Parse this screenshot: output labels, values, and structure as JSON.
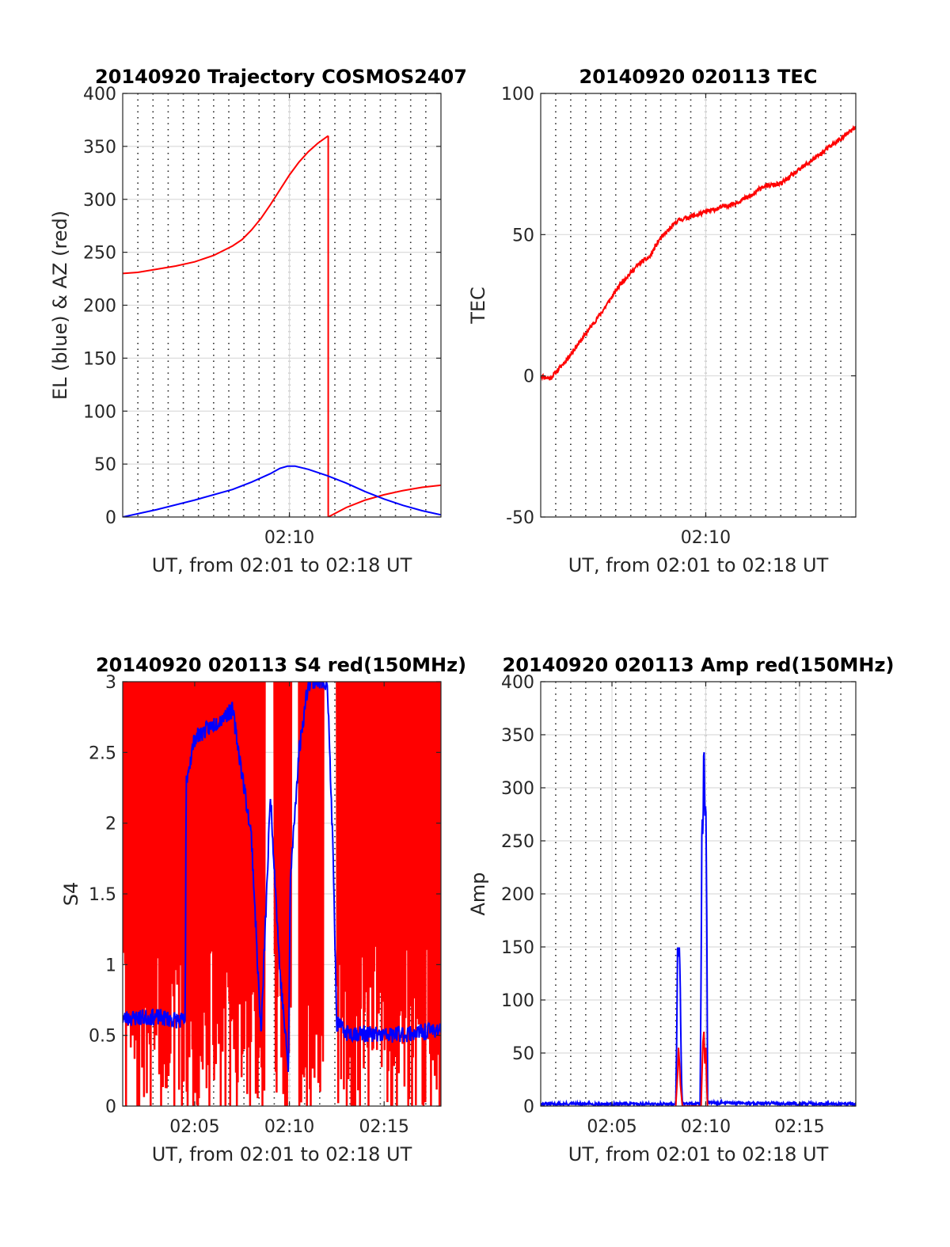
{
  "chart_data": [
    {
      "id": "traj",
      "type": "line",
      "title": "20140920 Trajectory COSMOS2407",
      "xlabel": "UT, from 02:01 to 02:18 UT",
      "ylabel": "EL (blue) & AZ (red)",
      "x_unit": "minutes after 02:00 UT",
      "xlim": [
        1.2,
        18.0
      ],
      "ylim": [
        0,
        400
      ],
      "yticks": [
        0,
        50,
        100,
        150,
        200,
        250,
        300,
        350,
        400
      ],
      "yticklabels": [
        "0",
        "50",
        "100",
        "150",
        "200",
        "250",
        "300",
        "350",
        "400"
      ],
      "xticks": [
        10
      ],
      "xticklabels": [
        "02:10"
      ],
      "minor_x_grid_step_min": 0.8,
      "grid": true,
      "series": [
        {
          "color": "#ff0000",
          "kind": "segments",
          "x": [
            1.2,
            2,
            3,
            4,
            5,
            6,
            7,
            7.5,
            8,
            8.5,
            9,
            9.5,
            10,
            10.5,
            11,
            11.5,
            12.05
          ],
          "y": [
            230,
            231,
            234,
            237,
            241,
            247,
            256,
            262,
            271,
            282,
            295,
            309,
            323,
            335,
            345,
            353,
            360
          ]
        },
        {
          "color": "#ff0000",
          "kind": "segments",
          "x": [
            12.05,
            12.05,
            13,
            14,
            15,
            16,
            17,
            18
          ],
          "y": [
            360,
            0,
            9,
            16,
            21,
            25,
            28,
            30
          ]
        },
        {
          "color": "#0000ff",
          "kind": "segments",
          "x": [
            1.2,
            3,
            5,
            7,
            8,
            9,
            9.5,
            9.9,
            10.3,
            11,
            12,
            13,
            14,
            15,
            16,
            17,
            18
          ],
          "y": [
            0,
            7,
            16,
            26,
            33,
            41,
            46,
            48,
            48,
            45,
            39,
            32,
            24,
            17,
            11,
            6,
            2
          ]
        }
      ]
    },
    {
      "id": "tec",
      "type": "line",
      "title": "20140920 020113 TEC",
      "xlabel": "UT, from 02:01 to 02:18 UT",
      "ylabel": "TEC",
      "x_unit": "minutes after 02:00 UT",
      "xlim": [
        1.2,
        18.0
      ],
      "ylim": [
        -50,
        100
      ],
      "yticks": [
        -50,
        0,
        50,
        100
      ],
      "yticklabels": [
        "-50",
        "0",
        "50",
        "100"
      ],
      "xticks": [
        10
      ],
      "xticklabels": [
        "02:10"
      ],
      "minor_x_grid_step_min": 0.8,
      "grid": true,
      "series": [
        {
          "color": "#ff0000",
          "kind": "noisy",
          "noise": 0.8,
          "seed": 11,
          "x": [
            1.2,
            1.7,
            2.5,
            3.5,
            4.5,
            5.5,
            6.5,
            7,
            7.5,
            8.5,
            9.5,
            10.5,
            11.5,
            12.5,
            13,
            14,
            15,
            16,
            17,
            18
          ],
          "y": [
            0,
            -1,
            5,
            14,
            23,
            33,
            40,
            42,
            48,
            55,
            57,
            59,
            61,
            64,
            67,
            68,
            73,
            78,
            83,
            88
          ]
        }
      ]
    },
    {
      "id": "s4",
      "type": "line",
      "title": "20140920 020113 S4 red(150MHz)",
      "xlabel": "UT, from 02:01 to 02:18 UT",
      "ylabel": "S4",
      "x_unit": "minutes after 02:00 UT",
      "xlim": [
        1.2,
        18.0
      ],
      "ylim": [
        0,
        3
      ],
      "yticks": [
        0,
        0.5,
        1,
        1.5,
        2,
        2.5,
        3
      ],
      "yticklabels": [
        "0",
        "0.5",
        "1",
        "1.5",
        "2",
        "2.5",
        "3"
      ],
      "xticks": [
        5,
        10,
        15
      ],
      "xticklabels": [
        "02:05",
        "02:10",
        "02:15"
      ],
      "minor_x_grid_step_min": 0.8,
      "grid": true,
      "series": [
        {
          "color": "#ff0000",
          "kind": "saturated",
          "seed": 7,
          "segments": [
            [
              1.2,
              8.7
            ],
            [
              9.2,
              10.1
            ],
            [
              10.5,
              11.8
            ],
            [
              12.5,
              18.0
            ]
          ]
        },
        {
          "color": "#0000ff",
          "kind": "noisy",
          "noise": 0.06,
          "seed": 23,
          "x": [
            1.2,
            3,
            4.5,
            4.55,
            5,
            6,
            7,
            8,
            8.5,
            9,
            9.5,
            9.95,
            10.05,
            10.5,
            11,
            11.5,
            12,
            12.3,
            12.5,
            13,
            15,
            17,
            18
          ],
          "y": [
            0.62,
            0.63,
            0.6,
            2.3,
            2.6,
            2.7,
            2.8,
            1.9,
            0.5,
            2.2,
            0.95,
            0.25,
            1.6,
            2.5,
            3.0,
            3.0,
            3.0,
            1.8,
            0.58,
            0.52,
            0.5,
            0.52,
            0.55
          ]
        }
      ]
    },
    {
      "id": "amp",
      "type": "line",
      "title": "20140920 020113 Amp red(150MHz)",
      "xlabel": "UT, from 02:01 to 02:18 UT",
      "ylabel": "Amp",
      "x_unit": "minutes after 02:00 UT",
      "xlim": [
        1.2,
        18.0
      ],
      "ylim": [
        0,
        400
      ],
      "yticks": [
        0,
        50,
        100,
        150,
        200,
        250,
        300,
        350,
        400
      ],
      "yticklabels": [
        "0",
        "50",
        "100",
        "150",
        "200",
        "250",
        "300",
        "350",
        "400"
      ],
      "xticks": [
        5,
        10,
        15
      ],
      "xticklabels": [
        "02:05",
        "02:10",
        "02:15"
      ],
      "minor_x_grid_step_min": 0.8,
      "grid": true,
      "series": [
        {
          "color": "#0000ff",
          "kind": "noisy",
          "noise": 1.5,
          "seed": 31,
          "x": [
            1.2,
            8.4,
            8.45,
            8.5,
            8.55,
            8.6,
            8.65,
            8.7,
            8.75,
            9.7,
            9.75,
            9.8,
            9.85,
            9.9,
            9.95,
            10.0,
            10.05,
            10.1,
            18.0
          ],
          "y": [
            2,
            2,
            60,
            155,
            140,
            150,
            100,
            30,
            2,
            2,
            120,
            280,
            250,
            355,
            270,
            290,
            200,
            3,
            2
          ]
        },
        {
          "color": "#ff0000",
          "kind": "segments",
          "x": [
            8.4,
            8.5,
            8.55,
            8.6,
            8.65,
            8.75,
            9.75,
            9.8,
            9.85,
            9.9,
            9.95,
            10.0,
            10.05,
            10.1
          ],
          "y": [
            0,
            30,
            55,
            40,
            20,
            0,
            0,
            30,
            60,
            70,
            40,
            55,
            20,
            0
          ]
        }
      ]
    }
  ]
}
